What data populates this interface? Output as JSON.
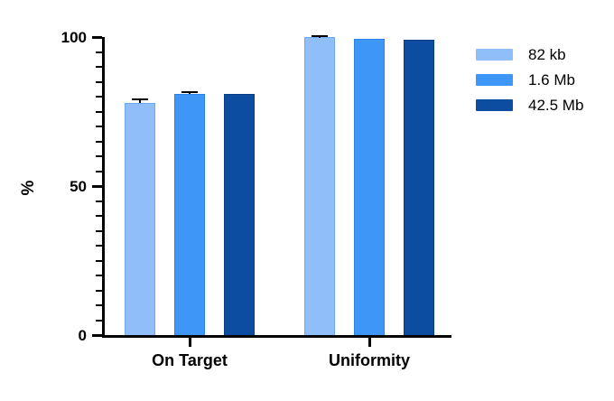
{
  "chart_data": {
    "type": "bar",
    "categories": [
      "On Target",
      "Uniformity"
    ],
    "series": [
      {
        "name": "82 kb",
        "color": "#8FBEF8",
        "border_color": "#6FA8EF",
        "values": [
          78,
          100
        ],
        "errors": [
          1.0,
          0.4
        ]
      },
      {
        "name": "1.6 Mb",
        "color": "#3E96F7",
        "border_color": "#2B82E8",
        "values": [
          81,
          99.5
        ],
        "errors": [
          0.5,
          0
        ]
      },
      {
        "name": "42.5 Mb",
        "color": "#0C4DA2",
        "border_color": "#093E86",
        "values": [
          81,
          99
        ],
        "errors": [
          0,
          0
        ]
      }
    ],
    "ylabel": "%",
    "xlabel": "",
    "ylim": [
      0,
      100
    ],
    "yticks": [
      0,
      50,
      100
    ],
    "minor_tick_step": 5,
    "grid": false,
    "legend_position": "right",
    "axis_color": "#000000",
    "error_bar_color": "#000000",
    "background_color": "#ffffff"
  }
}
